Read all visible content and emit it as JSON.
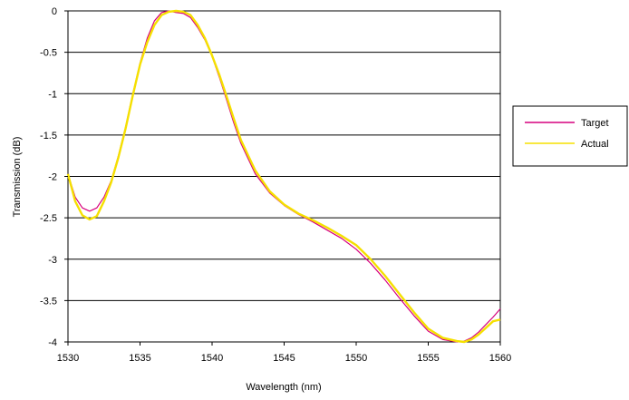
{
  "chart_data": {
    "type": "line",
    "title": "",
    "xlabel": "Wavelength (nm)",
    "ylabel": "Transmission (dB)",
    "xlim": [
      1530,
      1560
    ],
    "ylim": [
      -4,
      0
    ],
    "x_ticks": [
      "1530",
      "1535",
      "1540",
      "1545",
      "1550",
      "1555",
      "1560"
    ],
    "y_ticks": [
      "0",
      "-0.5",
      "-1",
      "-1.5",
      "-2",
      "-2.5",
      "-3",
      "-3.5",
      "-4"
    ],
    "grid": "horizontal",
    "legend_position": "right",
    "series": [
      {
        "name": "Target",
        "color": "#d6007e",
        "x": [
          1530,
          1530.5,
          1531,
          1531.5,
          1532,
          1532.5,
          1533,
          1533.5,
          1534,
          1534.5,
          1535,
          1535.5,
          1536,
          1536.5,
          1537,
          1537.5,
          1538,
          1538.5,
          1539,
          1539.5,
          1540,
          1540.5,
          1541,
          1541.5,
          1542,
          1543,
          1544,
          1545,
          1546,
          1547,
          1548,
          1549,
          1550,
          1551,
          1552,
          1553,
          1554,
          1555,
          1556,
          1557,
          1557.5,
          1558,
          1558.5,
          1559,
          1559.5,
          1560
        ],
        "y": [
          -1.97,
          -2.25,
          -2.38,
          -2.42,
          -2.38,
          -2.25,
          -2.05,
          -1.75,
          -1.4,
          -1.0,
          -0.63,
          -0.33,
          -0.12,
          -0.02,
          0.0,
          -0.02,
          -0.03,
          -0.08,
          -0.2,
          -0.35,
          -0.55,
          -0.8,
          -1.07,
          -1.35,
          -1.6,
          -1.97,
          -2.2,
          -2.35,
          -2.46,
          -2.55,
          -2.65,
          -2.75,
          -2.88,
          -3.05,
          -3.25,
          -3.47,
          -3.68,
          -3.87,
          -3.97,
          -4.0,
          -3.99,
          -3.95,
          -3.88,
          -3.79,
          -3.7,
          -3.6
        ]
      },
      {
        "name": "Actual",
        "color": "#f5e000",
        "x": [
          1530,
          1530.5,
          1531,
          1531.5,
          1532,
          1532.5,
          1533,
          1533.5,
          1534,
          1534.5,
          1535,
          1535.5,
          1536,
          1536.5,
          1537,
          1537.5,
          1538,
          1538.5,
          1539,
          1539.5,
          1540,
          1540.5,
          1541,
          1541.5,
          1542,
          1543,
          1544,
          1545,
          1546,
          1547,
          1548,
          1549,
          1550,
          1551,
          1552,
          1553,
          1554,
          1555,
          1556,
          1557,
          1557.5,
          1558,
          1558.5,
          1559,
          1559.5,
          1560
        ],
        "y": [
          -1.97,
          -2.3,
          -2.47,
          -2.52,
          -2.48,
          -2.3,
          -2.07,
          -1.77,
          -1.42,
          -1.02,
          -0.65,
          -0.38,
          -0.17,
          -0.05,
          -0.01,
          0.0,
          -0.01,
          -0.05,
          -0.17,
          -0.33,
          -0.54,
          -0.77,
          -1.03,
          -1.3,
          -1.56,
          -1.93,
          -2.18,
          -2.34,
          -2.45,
          -2.53,
          -2.62,
          -2.72,
          -2.83,
          -3.0,
          -3.2,
          -3.42,
          -3.64,
          -3.84,
          -3.95,
          -3.99,
          -4.0,
          -3.97,
          -3.91,
          -3.83,
          -3.75,
          -3.73
        ]
      }
    ]
  }
}
